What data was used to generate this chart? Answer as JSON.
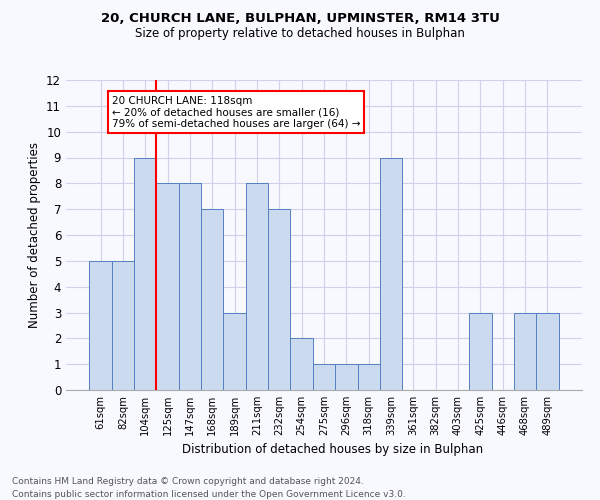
{
  "title1": "20, CHURCH LANE, BULPHAN, UPMINSTER, RM14 3TU",
  "title2": "Size of property relative to detached houses in Bulphan",
  "xlabel": "Distribution of detached houses by size in Bulphan",
  "ylabel": "Number of detached properties",
  "categories": [
    "61sqm",
    "82sqm",
    "104sqm",
    "125sqm",
    "147sqm",
    "168sqm",
    "189sqm",
    "211sqm",
    "232sqm",
    "254sqm",
    "275sqm",
    "296sqm",
    "318sqm",
    "339sqm",
    "361sqm",
    "382sqm",
    "403sqm",
    "425sqm",
    "446sqm",
    "468sqm",
    "489sqm"
  ],
  "values": [
    5,
    5,
    9,
    8,
    8,
    7,
    3,
    8,
    7,
    2,
    1,
    1,
    1,
    9,
    0,
    0,
    0,
    3,
    0,
    3,
    3
  ],
  "bar_color": "#ccdaf0",
  "bar_edge_color": "#5580c0",
  "vline_color": "red",
  "annotation_text": "20 CHURCH LANE: 118sqm\n← 20% of detached houses are smaller (16)\n79% of semi-detached houses are larger (64) →",
  "annotation_box_color": "white",
  "annotation_box_edge_color": "red",
  "ylim": [
    0,
    12
  ],
  "yticks": [
    0,
    1,
    2,
    3,
    4,
    5,
    6,
    7,
    8,
    9,
    10,
    11,
    12
  ],
  "grid_color": "#d0d0e8",
  "footnote1": "Contains HM Land Registry data © Crown copyright and database right 2024.",
  "footnote2": "Contains public sector information licensed under the Open Government Licence v3.0.",
  "bg_color": "#f8f8ff"
}
